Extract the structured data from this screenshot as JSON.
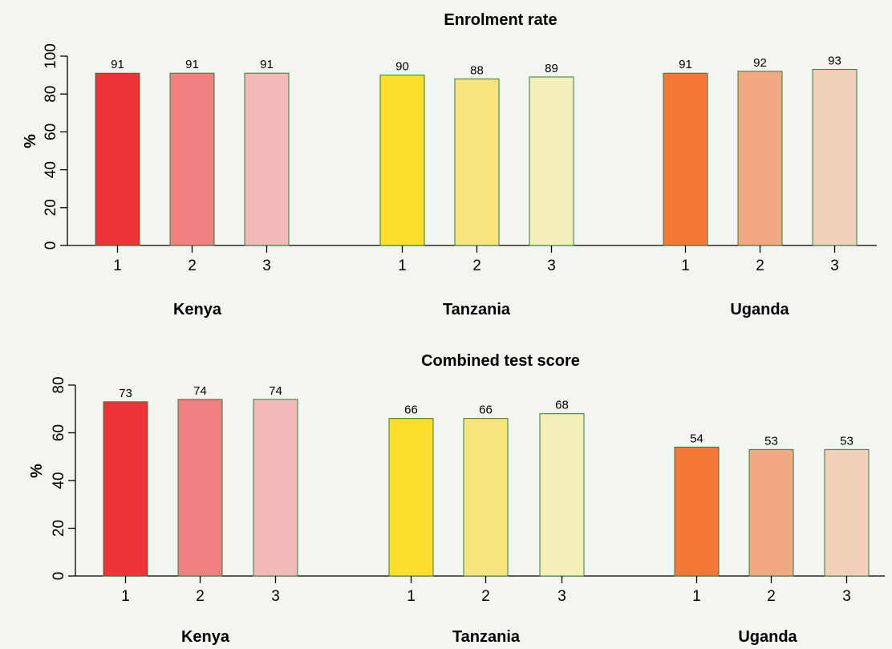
{
  "chart_data": [
    {
      "type": "bar",
      "title": "Enrolment rate",
      "ylabel": "%",
      "ylim": [
        0,
        100
      ],
      "yticks": [
        0,
        20,
        40,
        60,
        80,
        100
      ],
      "groups": [
        {
          "name": "Kenya",
          "categories": [
            "1",
            "2",
            "3"
          ],
          "values": [
            91,
            91,
            91
          ],
          "labels": [
            "91",
            "91",
            "91"
          ],
          "colors": [
            "#ee3338",
            "#f08080",
            "#f2b9b8"
          ]
        },
        {
          "name": "Tanzania",
          "categories": [
            "1",
            "2",
            "3"
          ],
          "values": [
            90,
            88,
            89
          ],
          "labels": [
            "90",
            "88",
            "89"
          ],
          "colors": [
            "#fbdf2a",
            "#f6e57c",
            "#f4efb8"
          ]
        },
        {
          "name": "Uganda",
          "categories": [
            "1",
            "2",
            "3"
          ],
          "values": [
            91,
            92,
            93
          ],
          "labels": [
            "91",
            "92",
            "93"
          ],
          "colors": [
            "#f47836",
            "#f2a880",
            "#f2d0ba"
          ]
        }
      ],
      "grid": false,
      "bar_outline": "#2e7d3c"
    },
    {
      "type": "bar",
      "title": "Combined test score",
      "ylabel": "%",
      "ylim": [
        0,
        80
      ],
      "yticks": [
        0,
        20,
        40,
        60,
        80
      ],
      "groups": [
        {
          "name": "Kenya",
          "categories": [
            "1",
            "2",
            "3"
          ],
          "values": [
            73,
            74,
            74
          ],
          "labels": [
            "73",
            "74",
            "74"
          ],
          "colors": [
            "#ee3338",
            "#f08080",
            "#f2b9b8"
          ]
        },
        {
          "name": "Tanzania",
          "categories": [
            "1",
            "2",
            "3"
          ],
          "values": [
            66,
            66,
            68
          ],
          "labels": [
            "66",
            "66",
            "68"
          ],
          "colors": [
            "#fbdf2a",
            "#f6e57c",
            "#f4efb8"
          ]
        },
        {
          "name": "Uganda",
          "categories": [
            "1",
            "2",
            "3"
          ],
          "values": [
            54,
            53,
            53
          ],
          "labels": [
            "54",
            "53",
            "53"
          ],
          "colors": [
            "#f47836",
            "#f2a880",
            "#f2d0ba"
          ]
        }
      ],
      "grid": false,
      "bar_outline": "#2e7d3c"
    }
  ]
}
